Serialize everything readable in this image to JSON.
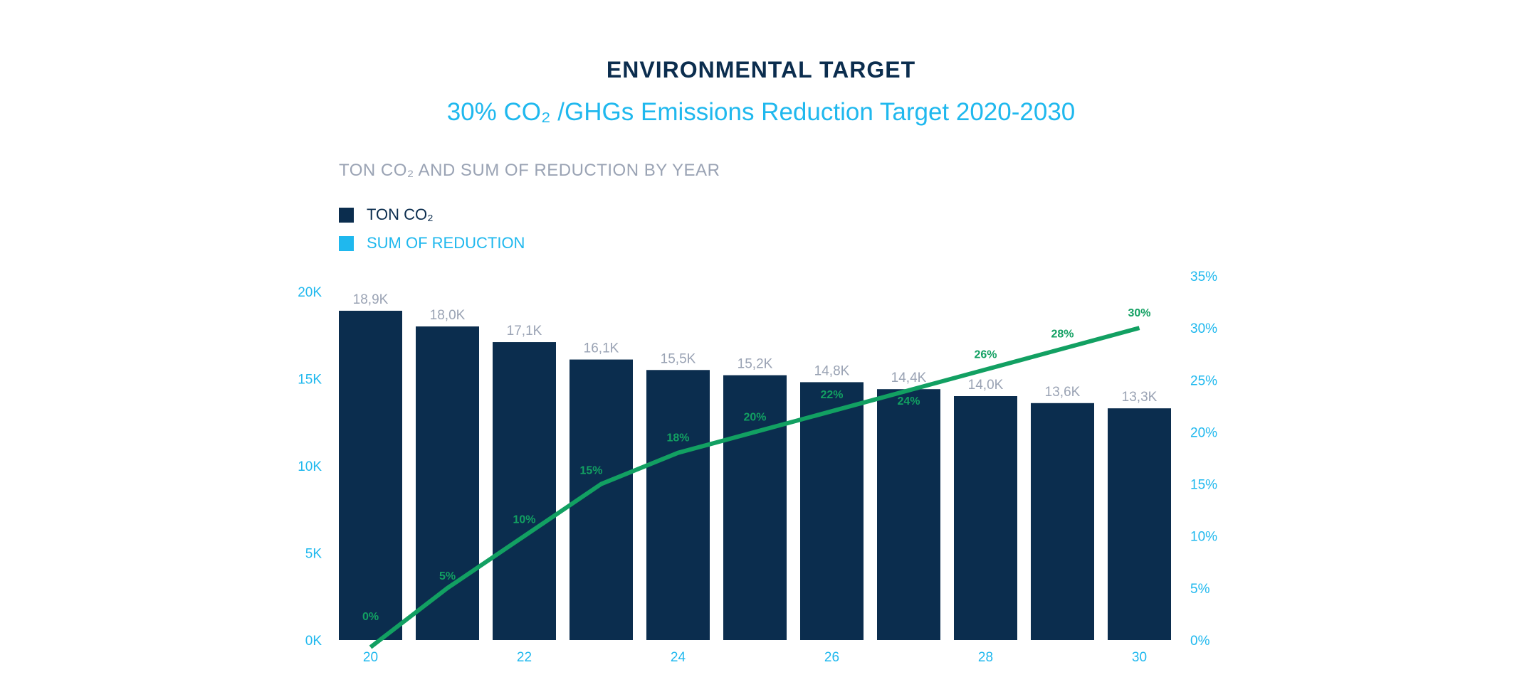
{
  "page": {
    "title": "ENVIRONMENTAL TARGET",
    "subtitle": "30% CO₂ /GHGs Emissions Reduction Target 2020-2030"
  },
  "chart_data": {
    "type": "bar",
    "title": "TON CO₂ AND SUM OF REDUCTION BY YEAR",
    "legend_position": "top-left",
    "grid": false,
    "colors": {
      "bars": "#0b2d4e",
      "line": "#12a062",
      "axis_ticks": "#1fb8ee",
      "bar_labels": "#9aa3b4",
      "legend_line": "#1fb8ee"
    },
    "x": [
      20,
      21,
      22,
      23,
      24,
      25,
      26,
      27,
      28,
      29,
      30
    ],
    "x_tick_labels": [
      "20",
      "",
      "22",
      "",
      "24",
      "",
      "26",
      "",
      "28",
      "",
      "30"
    ],
    "series": [
      {
        "name": "TON CO₂",
        "type": "bar",
        "axis": "left",
        "values": [
          18900,
          18000,
          17100,
          16100,
          15500,
          15200,
          14800,
          14400,
          14000,
          13600,
          13300
        ],
        "labels": [
          "18,9K",
          "18,0K",
          "17,1K",
          "16,1K",
          "15,5K",
          "15,2K",
          "14,8K",
          "14,4K",
          "14,0K",
          "13,6K",
          "13,3K"
        ]
      },
      {
        "name": "SUM OF REDUCTION",
        "type": "line",
        "axis": "right",
        "values": [
          0,
          5,
          10,
          15,
          18,
          20,
          22,
          24,
          26,
          28,
          30
        ],
        "labels": [
          "0%",
          "5%",
          "10%",
          "15%",
          "18%",
          "20%",
          "22%",
          "24%",
          "26%",
          "28%",
          "30%"
        ]
      }
    ],
    "y_left": {
      "range": [
        0,
        20000
      ],
      "ticks": [
        0,
        5000,
        10000,
        15000,
        20000
      ],
      "tick_labels": [
        "0K",
        "5K",
        "10K",
        "15K",
        "20K"
      ]
    },
    "y_right": {
      "range": [
        0,
        35
      ],
      "ticks": [
        0,
        5,
        10,
        15,
        20,
        25,
        30,
        35
      ],
      "tick_labels": [
        "0%",
        "5%",
        "10%",
        "15%",
        "20%",
        "25%",
        "30%",
        "35%"
      ]
    }
  }
}
